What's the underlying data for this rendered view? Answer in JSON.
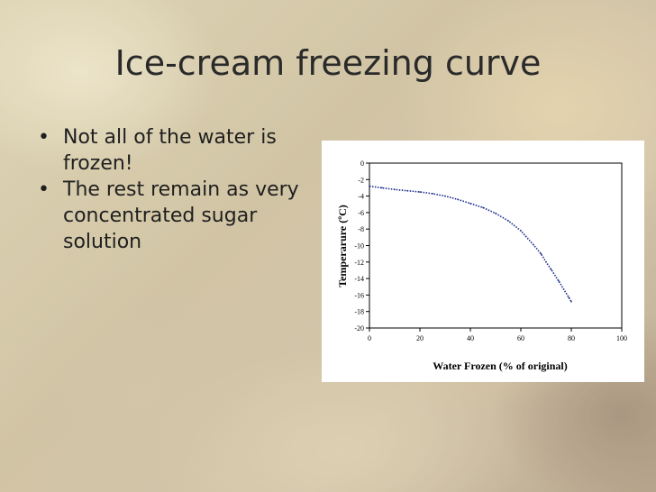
{
  "slide": {
    "title": "Ice-cream freezing curve",
    "bullets": [
      "Not all of the water is frozen!",
      "The rest remain as very concentrated sugar solution"
    ]
  },
  "chart_data": {
    "type": "line",
    "title": "",
    "xlabel": "Water Frozen (% of original)",
    "ylabel": "Temperarure (ºC)",
    "xlim": [
      0,
      100
    ],
    "ylim": [
      -20,
      0
    ],
    "xticks": [
      0,
      20,
      40,
      60,
      80,
      100
    ],
    "yticks": [
      0,
      -2,
      -4,
      -6,
      -8,
      -10,
      -12,
      -14,
      -16,
      -18,
      -20
    ],
    "grid": false,
    "legend": "none",
    "series": [
      {
        "color": "#1a2a8a",
        "style": "dotted",
        "x": [
          0,
          5,
          10,
          15,
          20,
          25,
          30,
          35,
          40,
          45,
          50,
          55,
          60,
          62,
          65,
          68,
          70,
          72,
          75,
          77,
          79,
          80
        ],
        "y": [
          -2.8,
          -3.0,
          -3.2,
          -3.35,
          -3.5,
          -3.7,
          -4.0,
          -4.4,
          -4.9,
          -5.4,
          -6.1,
          -7.0,
          -8.2,
          -8.9,
          -9.9,
          -11.0,
          -12.0,
          -12.9,
          -14.3,
          -15.3,
          -16.3,
          -16.8
        ]
      }
    ]
  }
}
